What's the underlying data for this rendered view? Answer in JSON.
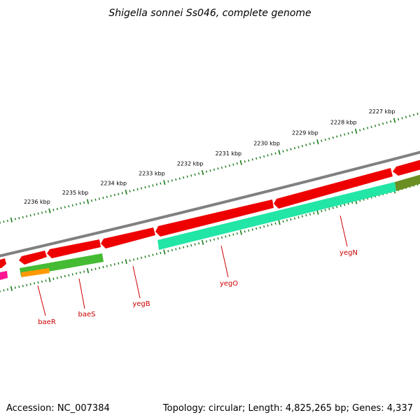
{
  "title": "Shigella sonnei Ss046, complete genome",
  "footer": {
    "accession": "Accession: NC_007384",
    "topology": "Topology: circular; Length: 4,825,265 bp; Genes: 4,337"
  },
  "scale": {
    "labels": [
      "2236 kbp",
      "2235 kbp",
      "2234 kbp",
      "2233 kbp",
      "2232 kbp",
      "2231 kbp",
      "2230 kbp",
      "2229 kbp",
      "2228 kbp",
      "2227 kbp"
    ]
  },
  "genes": [
    {
      "name": "baeR"
    },
    {
      "name": "baeS"
    },
    {
      "name": "yegB"
    },
    {
      "name": "yegO"
    },
    {
      "name": "yegN"
    }
  ],
  "colors": {
    "backbone": "#808080",
    "cds": "#ee0000",
    "teal": "#22e6a6",
    "green": "#44bb33",
    "olive": "#6b8e23",
    "orange": "#ff9900",
    "magenta": "#ff1493",
    "tick": "#1a7a1a",
    "label_line": "#cc0000"
  }
}
